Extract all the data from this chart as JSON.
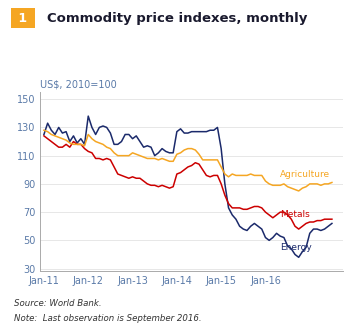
{
  "title": "Commodity price indexes, monthly",
  "figure_number": "1",
  "ylabel": "US$, 2010=100",
  "source_text": "Source: World Bank.",
  "note_text": "Note:  Last observation is September 2016.",
  "yticks": [
    30,
    50,
    70,
    90,
    110,
    130,
    150
  ],
  "ylim": [
    28,
    155
  ],
  "xtick_labels": [
    "Jan-11",
    "Jan-12",
    "Jan-13",
    "Jan-14",
    "Jan-15",
    "Jan-16"
  ],
  "background_color": "#ffffff",
  "title_box_color": "#F5A623",
  "title_color": "#1a1a2e",
  "energy_color": "#1B2A6B",
  "metals_color": "#CC0000",
  "agriculture_color": "#F5A623",
  "energy_label": "Energy",
  "metals_label": "Metals",
  "agriculture_label": "Agriculture",
  "energy": [
    125,
    133,
    128,
    125,
    130,
    126,
    127,
    120,
    124,
    119,
    122,
    118,
    138,
    130,
    125,
    130,
    131,
    130,
    126,
    118,
    118,
    120,
    125,
    125,
    122,
    124,
    120,
    116,
    117,
    116,
    110,
    112,
    115,
    113,
    112,
    112,
    127,
    129,
    126,
    126,
    127,
    127,
    127,
    127,
    127,
    128,
    128,
    130,
    115,
    90,
    73,
    68,
    65,
    60,
    58,
    57,
    60,
    62,
    60,
    58,
    52,
    50,
    52,
    55,
    53,
    52,
    46,
    44,
    40,
    38,
    42,
    45,
    55,
    58,
    58,
    57,
    58,
    60,
    62
  ],
  "metals": [
    124,
    122,
    120,
    118,
    116,
    116,
    118,
    116,
    120,
    118,
    118,
    115,
    113,
    112,
    108,
    108,
    107,
    108,
    107,
    102,
    97,
    96,
    95,
    94,
    95,
    94,
    94,
    92,
    90,
    89,
    89,
    88,
    89,
    88,
    87,
    88,
    97,
    98,
    100,
    102,
    103,
    105,
    104,
    100,
    96,
    95,
    96,
    96,
    90,
    82,
    76,
    73,
    73,
    73,
    72,
    72,
    73,
    74,
    74,
    73,
    70,
    68,
    66,
    68,
    70,
    70,
    68,
    65,
    60,
    58,
    60,
    62,
    63,
    63,
    64,
    64,
    65,
    65,
    65
  ],
  "agriculture": [
    128,
    127,
    125,
    124,
    123,
    122,
    121,
    119,
    118,
    118,
    118,
    117,
    125,
    122,
    120,
    119,
    118,
    116,
    115,
    112,
    110,
    110,
    110,
    110,
    112,
    111,
    110,
    109,
    108,
    108,
    108,
    107,
    108,
    107,
    106,
    106,
    111,
    112,
    114,
    115,
    115,
    114,
    111,
    107,
    107,
    107,
    107,
    107,
    102,
    97,
    95,
    97,
    96,
    96,
    96,
    96,
    97,
    96,
    96,
    96,
    92,
    90,
    89,
    89,
    89,
    90,
    88,
    87,
    86,
    85,
    87,
    88,
    90,
    90,
    90,
    89,
    90,
    90,
    91
  ]
}
